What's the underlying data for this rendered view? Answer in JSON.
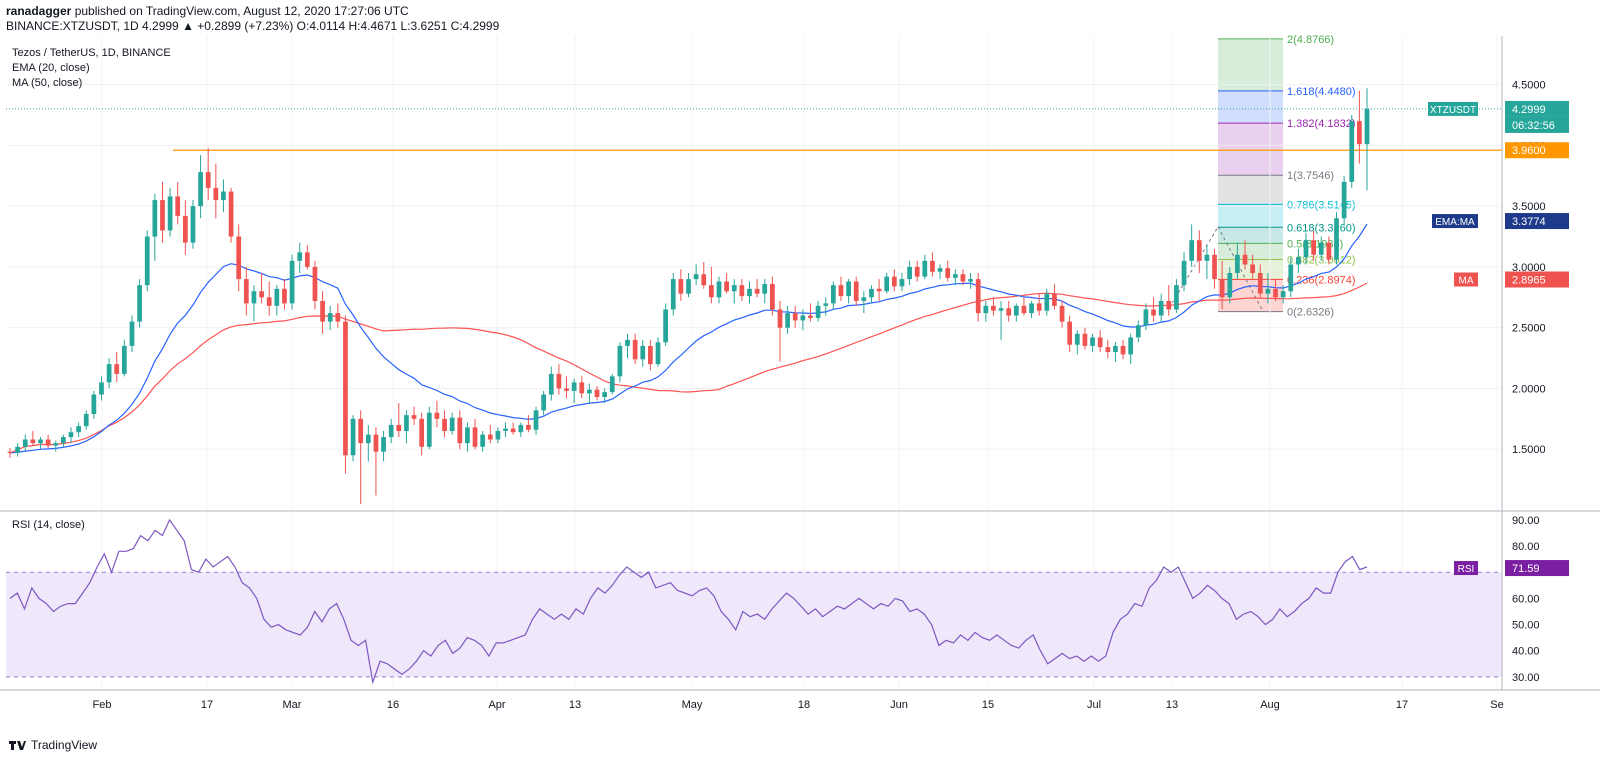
{
  "header": {
    "author": "ranadagger",
    "published": "published on TradingView.com, August 12, 2020 17:27:06 UTC",
    "symbol_line": "BINANCE:XTZUSDT, 1D",
    "ohlc": "4.2999 ▲ +0.2899 (+7.23%) O:4.0114 H:4.4671 L:3.6251 C:4.2999"
  },
  "footer": {
    "brand": "TradingView"
  },
  "colors": {
    "up": "#26a69a",
    "down": "#ef5350",
    "ema": "#2962ff",
    "ma": "#ff5252",
    "horizontal": "#ff9800",
    "rsi_line": "#7e57c2",
    "rsi_band": "#e8ddf8",
    "price_tag": "#26a69a",
    "ema_tag": "#1e3a8a",
    "ma_tag": "#ef5350",
    "rsi_tag": "#7b1fa2"
  },
  "chart_data": {
    "type": "candlestick",
    "title": "Tezos / TetherUS, 1D, BINANCE",
    "indicators": [
      "EMA (20, close)",
      "MA (50, close)"
    ],
    "price_axis": {
      "ticks": [
        "4.5000",
        "4.0000",
        "3.5000",
        "3.0000",
        "2.5000",
        "2.0000",
        "1.5000"
      ],
      "range": [
        1.0,
        4.9
      ]
    },
    "x_labels": [
      "Feb",
      "17",
      "Mar",
      "16",
      "Apr",
      "13",
      "May",
      "18",
      "Jun",
      "15",
      "Jul",
      "13",
      "Aug",
      "17",
      "Se"
    ],
    "last_price": {
      "symbol": "XTZUSDT",
      "value": "4.2999",
      "countdown": "06:32:56"
    },
    "horizontal_level": {
      "value": 3.96,
      "label": "3.9600"
    },
    "ema_tag": {
      "label": "EMA:MA",
      "value": "3.3774"
    },
    "ma_tag": {
      "label": "MA",
      "value": "2.8965"
    },
    "fibonacci": [
      {
        "ratio": "2",
        "value": "4.8766",
        "level": 4.8766,
        "color": "#4caf50"
      },
      {
        "ratio": "1.618",
        "value": "4.4480",
        "level": 4.448,
        "color": "#2962ff"
      },
      {
        "ratio": "1.382",
        "value": "4.1832",
        "level": 4.1832,
        "color": "#9c27b0"
      },
      {
        "ratio": "1",
        "value": "3.7546",
        "level": 3.7546,
        "color": "#787b86"
      },
      {
        "ratio": "0.786",
        "value": "3.5145",
        "level": 3.5145,
        "color": "#00bcd4"
      },
      {
        "ratio": "0.618",
        "value": "3.3260",
        "level": 3.326,
        "color": "#009688"
      },
      {
        "ratio": "0.5",
        "value": "3.1936",
        "level": 3.1936,
        "color": "#4caf50"
      },
      {
        "ratio": "0.382",
        "value": "3.0612",
        "level": 3.0612,
        "color": "#8bc34a"
      },
      {
        "ratio": "0.236",
        "value": "2.8974",
        "level": 2.8974,
        "color": "#f44336"
      },
      {
        "ratio": "0",
        "value": "2.6326",
        "level": 2.6326,
        "color": "#787b86"
      }
    ],
    "candles": [
      [
        1.48,
        1.51,
        1.43,
        1.47
      ],
      [
        1.47,
        1.55,
        1.44,
        1.52
      ],
      [
        1.52,
        1.62,
        1.49,
        1.58
      ],
      [
        1.58,
        1.65,
        1.53,
        1.55
      ],
      [
        1.55,
        1.6,
        1.5,
        1.58
      ],
      [
        1.58,
        1.62,
        1.51,
        1.53
      ],
      [
        1.53,
        1.57,
        1.48,
        1.55
      ],
      [
        1.55,
        1.62,
        1.52,
        1.6
      ],
      [
        1.6,
        1.68,
        1.55,
        1.64
      ],
      [
        1.64,
        1.72,
        1.6,
        1.69
      ],
      [
        1.69,
        1.82,
        1.66,
        1.79
      ],
      [
        1.79,
        1.98,
        1.75,
        1.95
      ],
      [
        1.95,
        2.1,
        1.9,
        2.05
      ],
      [
        2.05,
        2.25,
        2.0,
        2.2
      ],
      [
        2.2,
        2.3,
        2.05,
        2.12
      ],
      [
        2.12,
        2.4,
        2.1,
        2.35
      ],
      [
        2.35,
        2.6,
        2.3,
        2.55
      ],
      [
        2.55,
        2.9,
        2.5,
        2.85
      ],
      [
        2.85,
        3.3,
        2.8,
        3.25
      ],
      [
        3.25,
        3.6,
        3.05,
        3.55
      ],
      [
        3.55,
        3.7,
        3.2,
        3.3
      ],
      [
        3.3,
        3.65,
        3.25,
        3.58
      ],
      [
        3.58,
        3.7,
        3.35,
        3.42
      ],
      [
        3.42,
        3.55,
        3.1,
        3.2
      ],
      [
        3.2,
        3.55,
        3.15,
        3.5
      ],
      [
        3.5,
        3.92,
        3.4,
        3.78
      ],
      [
        3.78,
        3.98,
        3.55,
        3.65
      ],
      [
        3.65,
        3.85,
        3.4,
        3.55
      ],
      [
        3.55,
        3.72,
        3.45,
        3.62
      ],
      [
        3.62,
        3.65,
        3.2,
        3.25
      ],
      [
        3.25,
        3.35,
        2.8,
        2.9
      ],
      [
        2.9,
        3.0,
        2.6,
        2.7
      ],
      [
        2.7,
        2.85,
        2.55,
        2.8
      ],
      [
        2.8,
        2.95,
        2.7,
        2.75
      ],
      [
        2.75,
        2.88,
        2.6,
        2.68
      ],
      [
        2.68,
        2.85,
        2.6,
        2.82
      ],
      [
        2.82,
        2.9,
        2.65,
        2.7
      ],
      [
        2.7,
        3.1,
        2.65,
        3.05
      ],
      [
        3.05,
        3.2,
        2.95,
        3.12
      ],
      [
        3.12,
        3.18,
        2.98,
        3.0
      ],
      [
        3.0,
        3.05,
        2.65,
        2.72
      ],
      [
        2.72,
        2.8,
        2.45,
        2.55
      ],
      [
        2.55,
        2.68,
        2.48,
        2.62
      ],
      [
        2.62,
        2.7,
        2.5,
        2.55
      ],
      [
        2.55,
        2.6,
        1.3,
        1.45
      ],
      [
        1.45,
        1.78,
        1.4,
        1.75
      ],
      [
        1.75,
        1.82,
        1.05,
        1.55
      ],
      [
        1.55,
        1.7,
        1.4,
        1.62
      ],
      [
        1.62,
        1.68,
        1.12,
        1.48
      ],
      [
        1.48,
        1.65,
        1.4,
        1.6
      ],
      [
        1.6,
        1.75,
        1.55,
        1.7
      ],
      [
        1.7,
        1.88,
        1.6,
        1.65
      ],
      [
        1.65,
        1.82,
        1.55,
        1.78
      ],
      [
        1.78,
        1.85,
        1.7,
        1.75
      ],
      [
        1.75,
        1.8,
        1.45,
        1.52
      ],
      [
        1.52,
        1.85,
        1.5,
        1.8
      ],
      [
        1.8,
        1.9,
        1.68,
        1.75
      ],
      [
        1.75,
        1.82,
        1.6,
        1.65
      ],
      [
        1.65,
        1.8,
        1.62,
        1.76
      ],
      [
        1.76,
        1.82,
        1.5,
        1.55
      ],
      [
        1.55,
        1.72,
        1.48,
        1.68
      ],
      [
        1.68,
        1.75,
        1.5,
        1.52
      ],
      [
        1.52,
        1.65,
        1.48,
        1.62
      ],
      [
        1.62,
        1.7,
        1.55,
        1.58
      ],
      [
        1.58,
        1.68,
        1.55,
        1.65
      ],
      [
        1.65,
        1.72,
        1.6,
        1.67
      ],
      [
        1.67,
        1.72,
        1.62,
        1.64
      ],
      [
        1.64,
        1.72,
        1.6,
        1.7
      ],
      [
        1.7,
        1.78,
        1.64,
        1.66
      ],
      [
        1.66,
        1.85,
        1.62,
        1.82
      ],
      [
        1.82,
        1.98,
        1.78,
        1.95
      ],
      [
        1.95,
        2.18,
        1.9,
        2.12
      ],
      [
        2.12,
        2.2,
        1.95,
        2.0
      ],
      [
        2.0,
        2.1,
        1.92,
        1.98
      ],
      [
        1.98,
        2.08,
        1.88,
        2.05
      ],
      [
        2.05,
        2.1,
        1.92,
        1.96
      ],
      [
        1.96,
        2.04,
        1.88,
        1.99
      ],
      [
        1.99,
        2.02,
        1.9,
        1.93
      ],
      [
        1.93,
        2.0,
        1.88,
        1.97
      ],
      [
        1.97,
        2.12,
        1.95,
        2.1
      ],
      [
        2.1,
        2.38,
        2.05,
        2.35
      ],
      [
        2.35,
        2.45,
        2.25,
        2.4
      ],
      [
        2.4,
        2.45,
        2.2,
        2.24
      ],
      [
        2.24,
        2.4,
        2.18,
        2.35
      ],
      [
        2.35,
        2.4,
        2.15,
        2.2
      ],
      [
        2.2,
        2.42,
        2.18,
        2.38
      ],
      [
        2.38,
        2.7,
        2.35,
        2.65
      ],
      [
        2.65,
        2.95,
        2.6,
        2.9
      ],
      [
        2.9,
        2.98,
        2.72,
        2.78
      ],
      [
        2.78,
        2.95,
        2.75,
        2.9
      ],
      [
        2.9,
        3.02,
        2.85,
        2.94
      ],
      [
        2.94,
        3.04,
        2.82,
        2.85
      ],
      [
        2.85,
        3.0,
        2.7,
        2.75
      ],
      [
        2.75,
        2.92,
        2.7,
        2.88
      ],
      [
        2.88,
        2.95,
        2.78,
        2.8
      ],
      [
        2.8,
        2.9,
        2.7,
        2.85
      ],
      [
        2.85,
        2.9,
        2.72,
        2.76
      ],
      [
        2.76,
        2.88,
        2.7,
        2.82
      ],
      [
        2.82,
        2.9,
        2.75,
        2.78
      ],
      [
        2.78,
        2.9,
        2.7,
        2.86
      ],
      [
        2.86,
        2.92,
        2.6,
        2.65
      ],
      [
        2.65,
        2.72,
        2.22,
        2.5
      ],
      [
        2.5,
        2.68,
        2.45,
        2.62
      ],
      [
        2.62,
        2.68,
        2.5,
        2.56
      ],
      [
        2.56,
        2.65,
        2.48,
        2.6
      ],
      [
        2.6,
        2.7,
        2.55,
        2.58
      ],
      [
        2.58,
        2.72,
        2.55,
        2.68
      ],
      [
        2.68,
        2.75,
        2.6,
        2.7
      ],
      [
        2.7,
        2.88,
        2.65,
        2.85
      ],
      [
        2.85,
        2.92,
        2.72,
        2.76
      ],
      [
        2.76,
        2.9,
        2.7,
        2.88
      ],
      [
        2.88,
        2.92,
        2.68,
        2.72
      ],
      [
        2.72,
        2.8,
        2.62,
        2.75
      ],
      [
        2.75,
        2.85,
        2.7,
        2.82
      ],
      [
        2.82,
        2.9,
        2.72,
        2.8
      ],
      [
        2.8,
        2.95,
        2.78,
        2.92
      ],
      [
        2.92,
        2.98,
        2.8,
        2.84
      ],
      [
        2.84,
        2.95,
        2.8,
        2.9
      ],
      [
        2.9,
        3.05,
        2.85,
        3.0
      ],
      [
        3.0,
        3.05,
        2.88,
        2.92
      ],
      [
        2.92,
        3.1,
        2.9,
        3.05
      ],
      [
        3.05,
        3.12,
        2.92,
        2.96
      ],
      [
        2.96,
        3.02,
        2.9,
        2.99
      ],
      [
        2.99,
        3.05,
        2.88,
        2.91
      ],
      [
        2.91,
        2.98,
        2.85,
        2.94
      ],
      [
        2.94,
        2.98,
        2.85,
        2.88
      ],
      [
        2.88,
        2.95,
        2.82,
        2.9
      ],
      [
        2.9,
        2.95,
        2.55,
        2.62
      ],
      [
        2.62,
        2.72,
        2.55,
        2.68
      ],
      [
        2.68,
        2.75,
        2.6,
        2.64
      ],
      [
        2.64,
        2.72,
        2.4,
        2.66
      ],
      [
        2.66,
        2.72,
        2.55,
        2.6
      ],
      [
        2.6,
        2.7,
        2.55,
        2.68
      ],
      [
        2.68,
        2.75,
        2.6,
        2.62
      ],
      [
        2.62,
        2.72,
        2.58,
        2.7
      ],
      [
        2.7,
        2.78,
        2.6,
        2.64
      ],
      [
        2.64,
        2.82,
        2.6,
        2.78
      ],
      [
        2.78,
        2.86,
        2.65,
        2.68
      ],
      [
        2.68,
        2.72,
        2.5,
        2.55
      ],
      [
        2.55,
        2.6,
        2.3,
        2.36
      ],
      [
        2.36,
        2.48,
        2.28,
        2.45
      ],
      [
        2.45,
        2.5,
        2.32,
        2.35
      ],
      [
        2.35,
        2.45,
        2.3,
        2.42
      ],
      [
        2.42,
        2.48,
        2.3,
        2.34
      ],
      [
        2.34,
        2.4,
        2.25,
        2.3
      ],
      [
        2.3,
        2.38,
        2.22,
        2.35
      ],
      [
        2.35,
        2.4,
        2.24,
        2.28
      ],
      [
        2.28,
        2.45,
        2.2,
        2.42
      ],
      [
        2.42,
        2.56,
        2.38,
        2.52
      ],
      [
        2.52,
        2.7,
        2.48,
        2.65
      ],
      [
        2.65,
        2.75,
        2.55,
        2.6
      ],
      [
        2.6,
        2.78,
        2.55,
        2.72
      ],
      [
        2.72,
        2.85,
        2.6,
        2.65
      ],
      [
        2.65,
        2.9,
        2.62,
        2.85
      ],
      [
        2.85,
        3.12,
        2.8,
        3.05
      ],
      [
        3.05,
        3.35,
        3.0,
        3.22
      ],
      [
        3.22,
        3.3,
        2.95,
        3.05
      ],
      [
        3.05,
        3.18,
        2.9,
        3.1
      ],
      [
        3.1,
        3.15,
        2.82,
        2.9
      ],
      [
        2.9,
        3.05,
        2.65,
        2.75
      ],
      [
        2.75,
        3.0,
        2.7,
        2.95
      ],
      [
        2.95,
        3.2,
        2.9,
        3.1
      ],
      [
        3.1,
        3.22,
        2.98,
        3.02
      ],
      [
        3.02,
        3.1,
        2.9,
        2.95
      ],
      [
        2.95,
        3.02,
        2.75,
        2.78
      ],
      [
        2.78,
        2.95,
        2.7,
        2.82
      ],
      [
        2.82,
        2.9,
        2.72,
        2.75
      ],
      [
        2.75,
        2.85,
        2.7,
        2.8
      ],
      [
        2.8,
        3.08,
        2.75,
        3.02
      ],
      [
        3.02,
        3.15,
        2.95,
        3.08
      ],
      [
        3.08,
        3.28,
        3.02,
        3.22
      ],
      [
        3.22,
        3.3,
        3.05,
        3.1
      ],
      [
        3.1,
        3.25,
        3.05,
        3.2
      ],
      [
        3.2,
        3.25,
        3.02,
        3.06
      ],
      [
        3.06,
        3.45,
        3.02,
        3.4
      ],
      [
        3.4,
        3.75,
        3.35,
        3.7
      ],
      [
        3.7,
        4.25,
        3.65,
        4.2
      ],
      [
        4.2,
        4.45,
        3.85,
        4.01
      ],
      [
        4.01,
        4.47,
        3.63,
        4.3
      ]
    ],
    "rsi": {
      "label": "RSI (14, close)",
      "tag_label": "RSI",
      "last": "71.59",
      "ticks": [
        "90.00",
        "80.00",
        "70.00",
        "60.00",
        "50.00",
        "40.00",
        "30.00"
      ],
      "band": [
        30,
        70
      ],
      "range": [
        25,
        93
      ],
      "values": [
        60,
        62,
        56,
        64,
        60,
        58,
        55,
        57,
        58,
        58,
        62,
        66,
        72,
        77,
        70,
        78,
        78,
        79,
        84,
        82,
        86,
        84,
        90,
        86,
        82,
        71,
        70,
        75,
        72,
        74,
        76,
        72,
        66,
        64,
        60,
        52,
        49,
        50,
        48,
        47,
        46,
        49,
        55,
        51,
        56,
        58,
        52,
        44,
        42,
        44,
        28,
        36,
        35,
        33,
        31,
        33,
        36,
        40,
        38,
        42,
        44,
        39,
        41,
        45,
        44,
        42,
        38,
        43,
        43,
        44,
        45,
        46,
        52,
        56,
        54,
        52,
        54,
        52,
        56,
        54,
        60,
        64,
        62,
        65,
        69,
        72,
        70,
        68,
        70,
        64,
        65,
        66,
        63,
        62,
        61,
        63,
        64,
        61,
        55,
        52,
        48,
        55,
        53,
        54,
        52,
        56,
        59,
        62,
        60,
        57,
        54,
        56,
        53,
        55,
        57,
        56,
        58,
        60,
        58,
        56,
        58,
        57,
        60,
        59,
        55,
        56,
        54,
        50,
        42,
        44,
        43,
        46,
        44,
        47,
        45,
        44,
        46,
        44,
        42,
        41,
        44,
        46,
        40,
        35,
        37,
        39,
        37,
        38,
        36,
        38,
        36,
        38,
        47,
        52,
        54,
        58,
        57,
        64,
        67,
        72,
        70,
        72,
        66,
        60,
        62,
        65,
        63,
        60,
        58,
        52,
        54,
        55,
        53,
        50,
        52,
        56,
        53,
        55,
        58,
        60,
        64,
        62,
        62,
        70,
        74,
        76,
        71,
        72
      ]
    }
  }
}
